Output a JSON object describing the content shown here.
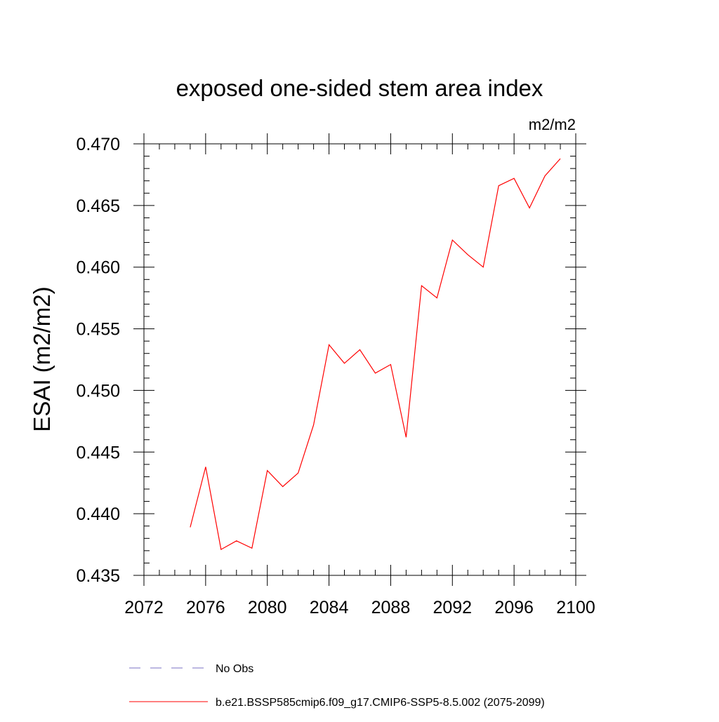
{
  "chart_data": {
    "type": "line",
    "title": "exposed one-sided stem area index",
    "units": "m2/m2",
    "xlabel": "",
    "ylabel": "ESAI  (m2/m2)",
    "xlim": [
      2072,
      2100
    ],
    "ylim": [
      0.435,
      0.47
    ],
    "x_ticks": [
      2072,
      2076,
      2080,
      2084,
      2088,
      2092,
      2096,
      2100
    ],
    "x_tick_labels": [
      "2072",
      "2076",
      "2080",
      "2084",
      "2088",
      "2092",
      "2096",
      "2100"
    ],
    "y_ticks": [
      0.435,
      0.44,
      0.445,
      0.45,
      0.455,
      0.46,
      0.465,
      0.47
    ],
    "y_tick_labels": [
      "0.435",
      "0.440",
      "0.445",
      "0.450",
      "0.455",
      "0.460",
      "0.465",
      "0.470"
    ],
    "x_minor_step": 1,
    "y_minor_step": 0.001,
    "grid": false,
    "legend_position": "bottom",
    "series": [
      {
        "name": "b.e21.BSSP585cmip6.f09_g17.CMIP6-SSP5-8.5.002 (2075-2099)",
        "color": "#ff0000",
        "style": "solid",
        "x": [
          2075,
          2076,
          2077,
          2078,
          2079,
          2080,
          2081,
          2082,
          2083,
          2084,
          2085,
          2086,
          2087,
          2088,
          2089,
          2090,
          2091,
          2092,
          2093,
          2094,
          2095,
          2096,
          2097,
          2098,
          2099
        ],
        "values": [
          0.4389,
          0.4438,
          0.4371,
          0.4378,
          0.4372,
          0.4435,
          0.4422,
          0.4433,
          0.4472,
          0.4537,
          0.4522,
          0.4533,
          0.4514,
          0.4521,
          0.4462,
          0.4585,
          0.4575,
          0.4622,
          0.461,
          0.46,
          0.4666,
          0.4672,
          0.4648,
          0.4674,
          0.4688
        ]
      }
    ],
    "legend": [
      {
        "label": "No Obs",
        "color": "#7a72c6",
        "style": "dashed"
      },
      {
        "label": "b.e21.BSSP585cmip6.f09_g17.CMIP6-SSP5-8.5.002 (2075-2099)",
        "color": "#ff0000",
        "style": "solid"
      }
    ]
  }
}
